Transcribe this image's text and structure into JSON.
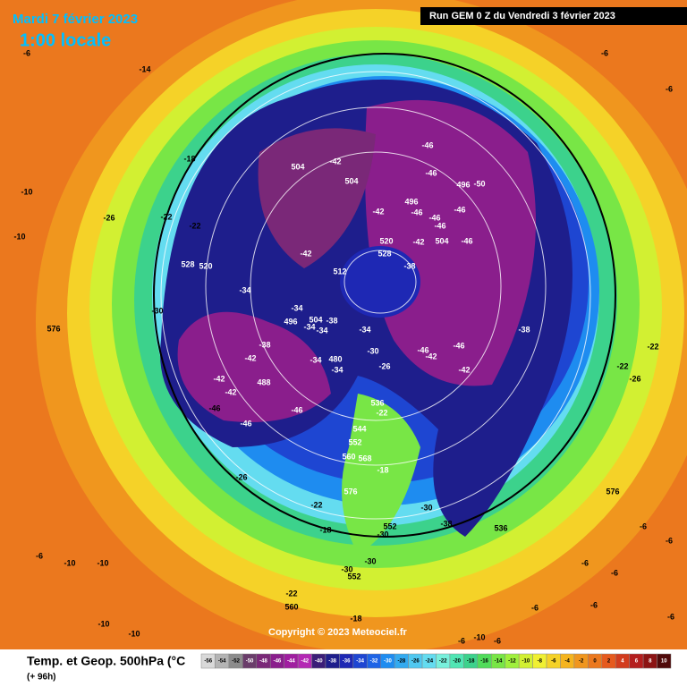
{
  "header": {
    "date": "Mardi 7 février 2023",
    "time": "1:00 locale",
    "run": "Run GEM 0 Z du Vendredi 3 février 2023"
  },
  "copyright": "Copyright © 2023 Meteociel.fr",
  "legend": {
    "title": "Temp. et Geop. 500hPa (°C",
    "lead": "(+ 96h)",
    "ticks": [
      -56,
      -54,
      -52,
      -50,
      -48,
      -46,
      -44,
      -42,
      -40,
      -38,
      -36,
      -34,
      -32,
      -30,
      -28,
      -26,
      -24,
      -22,
      -20,
      -18,
      -16,
      -14,
      -12,
      -10,
      -8,
      -6,
      -4,
      -2,
      0,
      2,
      4,
      6,
      8,
      10
    ],
    "colors": [
      "#d9d9d9",
      "#b4b4b4",
      "#8c8c8c",
      "#6a3d6a",
      "#7a2878",
      "#8a1e8c",
      "#a01ea0",
      "#b428b4",
      "#3c1e78",
      "#1e1e8c",
      "#1e28b4",
      "#1e46d2",
      "#1e64e6",
      "#1e8cf0",
      "#32aaf0",
      "#50c8f0",
      "#64dcf0",
      "#78f0dc",
      "#50e6b4",
      "#3cd28c",
      "#50dc5a",
      "#78e646",
      "#a0f03c",
      "#d2f032",
      "#f0f032",
      "#f5d228",
      "#f5b41e",
      "#f0961e",
      "#eb781e",
      "#e65a1e",
      "#d23c1e",
      "#b41e1e",
      "#8c1414",
      "#500a0a"
    ]
  },
  "map_labels": [
    "-6",
    "-14",
    "-6",
    "-6",
    "-18",
    "-10",
    "-26",
    "-22",
    "-22",
    "-10",
    "528",
    "520",
    "-30",
    "576",
    "504",
    "-42",
    "504",
    "-46",
    "-46",
    "496",
    "-50",
    "496",
    "-46",
    "-46",
    "-46",
    "-42",
    "-46",
    "-42",
    "504",
    "-46",
    "520",
    "528",
    "-42",
    "512",
    "-38",
    "-34",
    "-34",
    "496",
    "504",
    "-38",
    "-34",
    "-34",
    "-34",
    "-38",
    "-30",
    "-46",
    "-42",
    "-46",
    "-38",
    "-22",
    "-42",
    "480",
    "-34",
    "-34",
    "-26",
    "-42",
    "-22",
    "-26",
    "-42",
    "488",
    "-42",
    "536",
    "-22",
    "-46",
    "-46",
    "-46",
    "544",
    "552",
    "560",
    "568",
    "-18",
    "-26",
    "576",
    "576",
    "-22",
    "-30",
    "-38",
    "536",
    "-18",
    "552",
    "-6",
    "-6",
    "-30",
    "-30",
    "-30",
    "552",
    "-6",
    "-10",
    "-10",
    "-6",
    "-6",
    "-22",
    "560",
    "-6",
    "-10",
    "-10",
    "-18",
    "-6",
    "-6",
    "-6",
    "-10",
    "-6"
  ]
}
